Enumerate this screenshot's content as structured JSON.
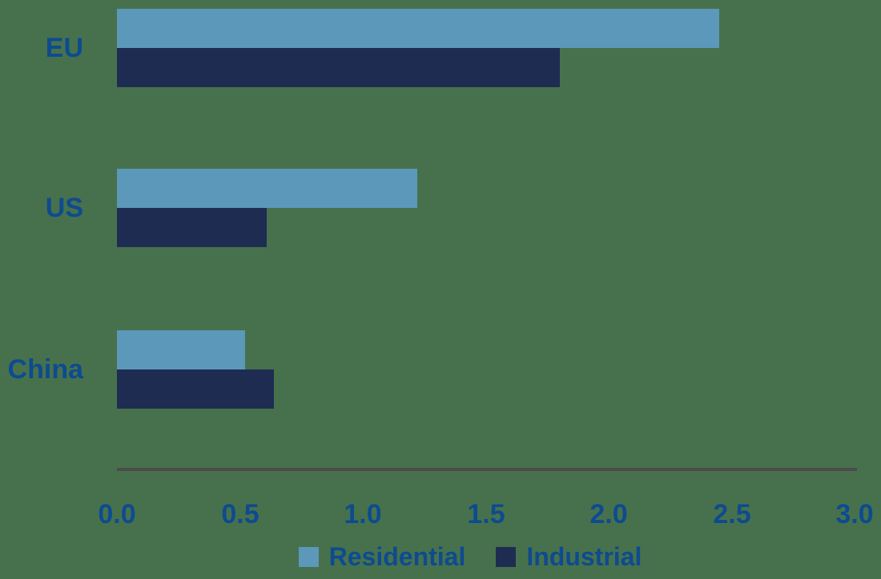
{
  "chart_data": {
    "type": "bar",
    "orientation": "horizontal",
    "title": "",
    "categories": [
      "EU",
      "US",
      "China"
    ],
    "series": [
      {
        "name": "Residential",
        "color": "#5b98b9",
        "values": [
          2.45,
          1.22,
          0.52
        ]
      },
      {
        "name": "Industrial",
        "color": "#1e2c52",
        "values": [
          1.8,
          0.61,
          0.64
        ]
      }
    ],
    "xlim": [
      0.0,
      3.0
    ],
    "xtick_labels": [
      "0.0",
      "0.5",
      "1.0",
      "1.5",
      "2.0",
      "2.5",
      "3.0"
    ],
    "legend_position": "bottom",
    "grid": false
  },
  "colors": {
    "background": "#47714d",
    "bar_residential": "#5b98b9",
    "bar_industrial": "#1e2c52",
    "label_text": "#0d4b90",
    "axis_line": "#4c4c4c"
  }
}
